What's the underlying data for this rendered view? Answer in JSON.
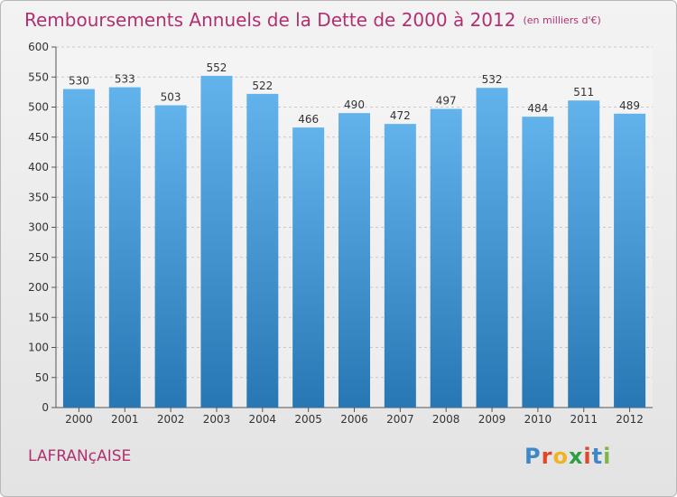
{
  "title": "Remboursements Annuels de la Dette de 2000 à 2012",
  "subtitle": "(en milliers d'€)",
  "commune": "LAFRANçAISE",
  "logo": {
    "letters": [
      "P",
      "r",
      "o",
      "x",
      "i",
      "t",
      "i"
    ],
    "colors": [
      "#3f88c5",
      "#e0452d",
      "#f0b323",
      "#2e9f44",
      "#e0452d",
      "#3f88c5",
      "#7ab648"
    ]
  },
  "colors": {
    "bar_top": "#62b3ec",
    "bar_bottom": "#2777b4",
    "title": "#b03070",
    "text": "#333333",
    "grid": "#c8c8c8"
  },
  "chart_data": {
    "type": "bar",
    "title": "Remboursements Annuels de la Dette de 2000 à 2012",
    "subtitle": "(en milliers d'€)",
    "categories": [
      "2000",
      "2001",
      "2002",
      "2003",
      "2004",
      "2005",
      "2006",
      "2007",
      "2008",
      "2009",
      "2010",
      "2011",
      "2012"
    ],
    "values": [
      530,
      533,
      503,
      552,
      522,
      466,
      490,
      472,
      497,
      532,
      484,
      511,
      489
    ],
    "ylim": [
      0,
      600
    ],
    "yticks": [
      0,
      50,
      100,
      150,
      200,
      250,
      300,
      350,
      400,
      450,
      500,
      550,
      600
    ],
    "grid": true,
    "data_labels": true
  }
}
